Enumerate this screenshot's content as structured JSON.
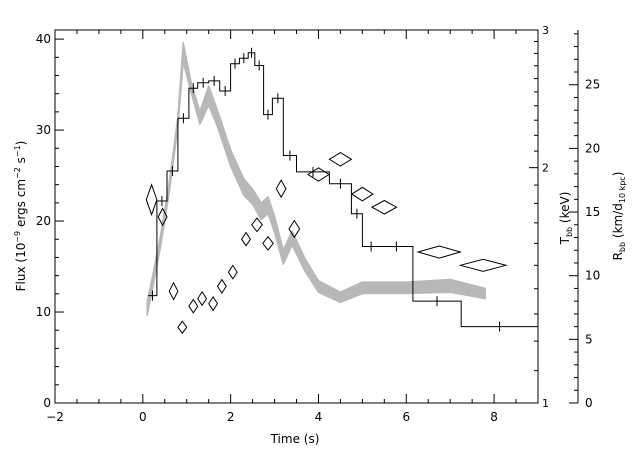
{
  "chart_data": {
    "type": "line",
    "title": "",
    "xlabel": "Time (s)",
    "ylabel_left": {
      "base": "Flux (10",
      "exp1": "−9",
      "mid": " ergs cm",
      "exp2": "−2",
      "mid2": " s",
      "exp3": "−1",
      "end": ")"
    },
    "ylabel_t": {
      "base": "T",
      "sub": "bb",
      "end": " (keV)"
    },
    "ylabel_r": {
      "base": "R",
      "sub": "bb",
      "mid": " (km/d",
      "sub2": "10 kpc",
      "end": ")"
    },
    "xlim": [
      -2,
      9
    ],
    "ylim_flux": [
      0,
      41
    ],
    "ylim_temperature": [
      1,
      3
    ],
    "temperature_scale": "log",
    "ylim_radius": [
      0,
      29.3
    ],
    "x_ticks": [
      -2,
      0,
      2,
      4,
      6,
      8
    ],
    "x_tick_labels": [
      "−2",
      "0",
      "2",
      "4",
      "6",
      "8"
    ],
    "flux_ticks": [
      0,
      10,
      20,
      30,
      40
    ],
    "flux_tick_labels": [
      "0",
      "10",
      "20",
      "30",
      "40"
    ],
    "temperature_ticks": [
      1,
      2,
      3
    ],
    "temperature_tick_labels": [
      "1",
      "2",
      "3"
    ],
    "radius_ticks": [
      0,
      5,
      10,
      15,
      20,
      25
    ],
    "radius_tick_labels": [
      "0",
      "5",
      "10",
      "15",
      "20",
      "25"
    ],
    "series": [
      {
        "kind": "flux-histogram",
        "color": "#000000",
        "bins": [
          {
            "x0": 0.12,
            "x1": 0.32,
            "y": 11.8
          },
          {
            "x0": 0.32,
            "x1": 0.55,
            "y": 22.2
          },
          {
            "x0": 0.55,
            "x1": 0.8,
            "y": 25.5
          },
          {
            "x0": 0.8,
            "x1": 1.05,
            "y": 31.3
          },
          {
            "x0": 1.05,
            "x1": 1.25,
            "y": 34.6
          },
          {
            "x0": 1.25,
            "x1": 1.5,
            "y": 35.2
          },
          {
            "x0": 1.5,
            "x1": 1.75,
            "y": 35.4
          },
          {
            "x0": 1.75,
            "x1": 2.0,
            "y": 34.3
          },
          {
            "x0": 2.0,
            "x1": 2.2,
            "y": 37.3
          },
          {
            "x0": 2.2,
            "x1": 2.4,
            "y": 37.9
          },
          {
            "x0": 2.4,
            "x1": 2.55,
            "y": 38.5
          },
          {
            "x0": 2.55,
            "x1": 2.75,
            "y": 37.1
          },
          {
            "x0": 2.75,
            "x1": 2.95,
            "y": 31.7
          },
          {
            "x0": 2.95,
            "x1": 3.2,
            "y": 33.5
          },
          {
            "x0": 3.2,
            "x1": 3.5,
            "y": 27.2
          },
          {
            "x0": 3.5,
            "x1": 4.25,
            "y": 25.4
          },
          {
            "x0": 4.25,
            "x1": 4.75,
            "y": 24.1
          },
          {
            "x0": 4.75,
            "x1": 5.0,
            "y": 20.8
          },
          {
            "x0": 5.0,
            "x1": 5.4,
            "y": 17.2
          },
          {
            "x0": 5.4,
            "x1": 6.15,
            "y": 17.2
          },
          {
            "x0": 6.15,
            "x1": 7.25,
            "y": 11.2
          },
          {
            "x0": 7.25,
            "x1": 9.0,
            "y": 8.4
          }
        ]
      },
      {
        "kind": "radius-band",
        "color": "#b8b8b8",
        "x": [
          0.1,
          0.2,
          0.4,
          0.6,
          0.8,
          0.92,
          1.1,
          1.3,
          1.5,
          1.7,
          2.0,
          2.3,
          2.5,
          2.7,
          2.85,
          3.0,
          3.2,
          3.4,
          3.7,
          4.0,
          4.5,
          5.0,
          6.0,
          7.0,
          7.8
        ],
        "low": [
          6.9,
          8.6,
          12.2,
          16.5,
          21.7,
          26.8,
          24.4,
          21.9,
          23.4,
          21.7,
          18.6,
          16.3,
          15.6,
          14.4,
          14.9,
          13.4,
          10.9,
          12.4,
          10.3,
          8.7,
          7.9,
          8.6,
          8.6,
          8.7,
          8.2
        ],
        "high": [
          8.0,
          9.6,
          13.1,
          17.3,
          22.5,
          28.3,
          25.2,
          22.9,
          24.9,
          23.0,
          19.9,
          17.6,
          16.8,
          15.7,
          16.2,
          14.7,
          12.0,
          13.5,
          11.3,
          9.6,
          8.7,
          9.5,
          9.5,
          9.7,
          9.0
        ]
      },
      {
        "kind": "temperature-diamonds",
        "color": "#000000",
        "points": [
          {
            "x": 0.2,
            "y": 1.82,
            "dx": 0.12,
            "dy_frac": 0.045
          },
          {
            "x": 0.45,
            "y": 1.73,
            "dx": 0.1,
            "dy_frac": 0.025
          },
          {
            "x": 0.7,
            "y": 1.39,
            "dx": 0.1,
            "dy_frac": 0.025
          },
          {
            "x": 0.9,
            "y": 1.25,
            "dx": 0.1,
            "dy_frac": 0.018
          },
          {
            "x": 1.15,
            "y": 1.33,
            "dx": 0.1,
            "dy_frac": 0.02
          },
          {
            "x": 1.35,
            "y": 1.36,
            "dx": 0.1,
            "dy_frac": 0.02
          },
          {
            "x": 1.6,
            "y": 1.34,
            "dx": 0.1,
            "dy_frac": 0.02
          },
          {
            "x": 1.8,
            "y": 1.41,
            "dx": 0.1,
            "dy_frac": 0.02
          },
          {
            "x": 2.05,
            "y": 1.47,
            "dx": 0.1,
            "dy_frac": 0.02
          },
          {
            "x": 2.35,
            "y": 1.62,
            "dx": 0.1,
            "dy_frac": 0.02
          },
          {
            "x": 2.6,
            "y": 1.69,
            "dx": 0.12,
            "dy_frac": 0.02
          },
          {
            "x": 2.85,
            "y": 1.6,
            "dx": 0.12,
            "dy_frac": 0.02
          },
          {
            "x": 3.15,
            "y": 1.88,
            "dx": 0.11,
            "dy_frac": 0.025
          },
          {
            "x": 3.45,
            "y": 1.67,
            "dx": 0.12,
            "dy_frac": 0.025
          },
          {
            "x": 4.0,
            "y": 1.96,
            "dx": 0.24,
            "dy_frac": 0.02
          },
          {
            "x": 4.5,
            "y": 2.05,
            "dx": 0.25,
            "dy_frac": 0.02
          },
          {
            "x": 5.0,
            "y": 1.85,
            "dx": 0.24,
            "dy_frac": 0.02
          },
          {
            "x": 5.5,
            "y": 1.78,
            "dx": 0.28,
            "dy_frac": 0.02
          },
          {
            "x": 6.75,
            "y": 1.56,
            "dx": 0.48,
            "dy_frac": 0.018
          },
          {
            "x": 7.75,
            "y": 1.5,
            "dx": 0.52,
            "dy_frac": 0.018
          }
        ]
      }
    ]
  }
}
